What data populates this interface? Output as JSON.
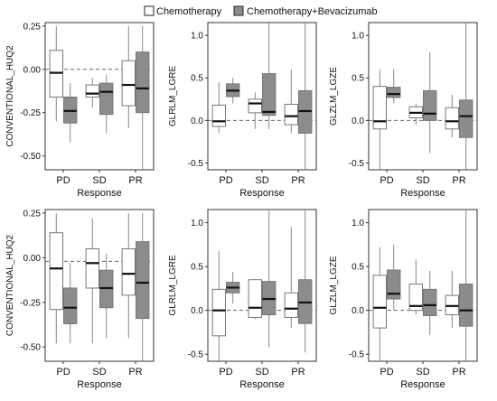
{
  "legend": [
    {
      "name": "Chemotherapy",
      "color": "#ffffff"
    },
    {
      "name": "Chemotherapy+Bevacizumab",
      "color": "#8c8c8c"
    }
  ],
  "chart_data": [
    {
      "type": "boxplot",
      "xlabel": "Response",
      "ylabel": "CONVENTIONAL_HUQ2",
      "categories": [
        "PD",
        "SD",
        "PR"
      ],
      "ylim": [
        -0.58,
        0.27
      ],
      "yticks": [
        0.25,
        0.0,
        -0.25,
        -0.5
      ],
      "ytick_labels": [
        "0.25",
        "0.00",
        "-0.25",
        "-0.50"
      ],
      "reference_line": 0.0,
      "series": [
        {
          "name": "Chemotherapy",
          "boxes": [
            {
              "min": -0.3,
              "q1": -0.16,
              "median": -0.02,
              "q3": 0.11,
              "max": 0.25
            },
            {
              "min": -0.22,
              "q1": -0.16,
              "median": -0.14,
              "q3": -0.09,
              "max": -0.05
            },
            {
              "min": -0.34,
              "q1": -0.21,
              "median": -0.09,
              "q3": 0.05,
              "max": 0.25
            }
          ]
        },
        {
          "name": "Chemotherapy+Bevacizumab",
          "boxes": [
            {
              "min": -0.42,
              "q1": -0.31,
              "median": -0.24,
              "q3": -0.16,
              "max": -0.08
            },
            {
              "min": -0.37,
              "q1": -0.26,
              "median": -0.13,
              "q3": -0.08,
              "max": -0.03
            },
            {
              "min": -0.58,
              "q1": -0.25,
              "median": -0.11,
              "q3": 0.1,
              "max": 0.25
            }
          ]
        }
      ]
    },
    {
      "type": "boxplot",
      "xlabel": "Response",
      "ylabel": "GLRLM_LGRE",
      "categories": [
        "PD",
        "SD",
        "PR"
      ],
      "ylim": [
        -0.58,
        1.15
      ],
      "yticks": [
        1.0,
        0.5,
        0.0,
        -0.5
      ],
      "ytick_labels": [
        "1.0",
        "0.5",
        "0.0",
        "-0.5"
      ],
      "reference_line": 0.0,
      "series": [
        {
          "name": "Chemotherapy",
          "boxes": [
            {
              "min": -0.15,
              "q1": -0.07,
              "median": -0.01,
              "q3": 0.18,
              "max": 0.45
            },
            {
              "min": -0.1,
              "q1": 0.09,
              "median": 0.2,
              "q3": 0.25,
              "max": 0.33
            },
            {
              "min": -0.15,
              "q1": -0.05,
              "median": 0.05,
              "q3": 0.19,
              "max": 0.6
            }
          ]
        },
        {
          "name": "Chemotherapy+Bevacizumab",
          "boxes": [
            {
              "min": 0.2,
              "q1": 0.28,
              "median": 0.35,
              "q3": 0.43,
              "max": 0.5
            },
            {
              "min": -0.1,
              "q1": 0.06,
              "median": 0.1,
              "q3": 0.55,
              "max": 1.15
            },
            {
              "min": -0.58,
              "q1": -0.15,
              "median": 0.11,
              "q3": 0.35,
              "max": 1.15
            }
          ]
        }
      ]
    },
    {
      "type": "boxplot",
      "xlabel": "Response",
      "ylabel": "GLZLM_LGZE",
      "categories": [
        "PD",
        "SD",
        "PR"
      ],
      "ylim": [
        -0.58,
        1.15
      ],
      "yticks": [
        1.0,
        0.5,
        0.0,
        -0.5
      ],
      "ytick_labels": [
        "1.0",
        "0.5",
        "0.0",
        "-0.5"
      ],
      "reference_line": 0.0,
      "series": [
        {
          "name": "Chemotherapy",
          "boxes": [
            {
              "min": -0.58,
              "q1": -0.1,
              "median": -0.01,
              "q3": 0.4,
              "max": 0.6
            },
            {
              "min": -0.05,
              "q1": 0.03,
              "median": 0.09,
              "q3": 0.16,
              "max": 0.2
            },
            {
              "min": -0.2,
              "q1": -0.1,
              "median": -0.01,
              "q3": 0.15,
              "max": 0.3
            }
          ]
        },
        {
          "name": "Chemotherapy+Bevacizumab",
          "boxes": [
            {
              "min": 0.2,
              "q1": 0.27,
              "median": 0.31,
              "q3": 0.39,
              "max": 0.6
            },
            {
              "min": -0.38,
              "q1": 0.0,
              "median": 0.08,
              "q3": 0.35,
              "max": 0.8
            },
            {
              "min": -0.58,
              "q1": -0.2,
              "median": 0.05,
              "q3": 0.24,
              "max": 1.15
            }
          ]
        }
      ]
    },
    {
      "type": "boxplot",
      "xlabel": "Response",
      "ylabel": "CONVENTIONAL_HUQ2",
      "categories": [
        "PD",
        "SD",
        "PR"
      ],
      "ylim": [
        -0.58,
        0.27
      ],
      "yticks": [
        0.25,
        0.0,
        -0.25,
        -0.5
      ],
      "ytick_labels": [
        "0.25",
        "0.00",
        "-0.25",
        "-0.50"
      ],
      "reference_line": -0.02,
      "series": [
        {
          "name": "Chemotherapy",
          "boxes": [
            {
              "min": -0.48,
              "q1": -0.29,
              "median": -0.06,
              "q3": 0.14,
              "max": 0.25
            },
            {
              "min": -0.48,
              "q1": -0.17,
              "median": -0.03,
              "q3": 0.05,
              "max": 0.22
            },
            {
              "min": -0.45,
              "q1": -0.21,
              "median": -0.09,
              "q3": 0.05,
              "max": 0.25
            }
          ]
        },
        {
          "name": "Chemotherapy+Bevacizumab",
          "boxes": [
            {
              "min": -0.48,
              "q1": -0.37,
              "median": -0.28,
              "q3": -0.17,
              "max": -0.03
            },
            {
              "min": -0.45,
              "q1": -0.28,
              "median": -0.17,
              "q3": -0.07,
              "max": 0.02
            },
            {
              "min": -0.58,
              "q1": -0.34,
              "median": -0.14,
              "q3": 0.09,
              "max": 0.25
            }
          ]
        }
      ]
    },
    {
      "type": "boxplot",
      "xlabel": "Response",
      "ylabel": "GLRLM_LGRE",
      "categories": [
        "PD",
        "SD",
        "PR"
      ],
      "ylim": [
        -0.58,
        1.15
      ],
      "yticks": [
        1.0,
        0.5,
        0.0,
        -0.5
      ],
      "ytick_labels": [
        "1.0",
        "0.5",
        "0.0",
        "-0.5"
      ],
      "reference_line": 0.0,
      "series": [
        {
          "name": "Chemotherapy",
          "boxes": [
            {
              "min": -0.58,
              "q1": -0.29,
              "median": 0.0,
              "q3": 0.24,
              "max": 0.68
            },
            {
              "min": -0.1,
              "q1": -0.08,
              "median": 0.03,
              "q3": 0.35,
              "max": 0.35
            },
            {
              "min": -0.2,
              "q1": -0.08,
              "median": 0.02,
              "q3": 0.2,
              "max": 0.95
            }
          ]
        },
        {
          "name": "Chemotherapy+Bevacizumab",
          "boxes": [
            {
              "min": 0.08,
              "q1": 0.2,
              "median": 0.26,
              "q3": 0.32,
              "max": 0.44
            },
            {
              "min": -0.42,
              "q1": -0.05,
              "median": 0.13,
              "q3": 0.33,
              "max": 1.15
            },
            {
              "min": -0.48,
              "q1": -0.15,
              "median": 0.09,
              "q3": 0.35,
              "max": 1.15
            }
          ]
        }
      ]
    },
    {
      "type": "boxplot",
      "xlabel": "Response",
      "ylabel": "GLZLM_LGZE",
      "categories": [
        "PD",
        "SD",
        "PR"
      ],
      "ylim": [
        -0.58,
        1.15
      ],
      "yticks": [
        1.0,
        0.5,
        0.0,
        -0.5
      ],
      "ytick_labels": [
        "1.0",
        "0.5",
        "0.0",
        "-0.5"
      ],
      "reference_line": 0.0,
      "series": [
        {
          "name": "Chemotherapy",
          "boxes": [
            {
              "min": -0.58,
              "q1": -0.2,
              "median": 0.03,
              "q3": 0.4,
              "max": 0.72
            },
            {
              "min": -0.05,
              "q1": 0.0,
              "median": 0.05,
              "q3": 0.3,
              "max": 0.58
            },
            {
              "min": -0.2,
              "q1": -0.05,
              "median": 0.05,
              "q3": 0.17,
              "max": 0.45
            }
          ]
        },
        {
          "name": "Chemotherapy+Bevacizumab",
          "boxes": [
            {
              "min": 0.0,
              "q1": 0.13,
              "median": 0.19,
              "q3": 0.46,
              "max": 0.75
            },
            {
              "min": -0.28,
              "q1": -0.06,
              "median": 0.06,
              "q3": 0.24,
              "max": 0.45
            },
            {
              "min": -0.58,
              "q1": -0.18,
              "median": 0.0,
              "q3": 0.3,
              "max": 1.15
            }
          ]
        }
      ]
    }
  ]
}
